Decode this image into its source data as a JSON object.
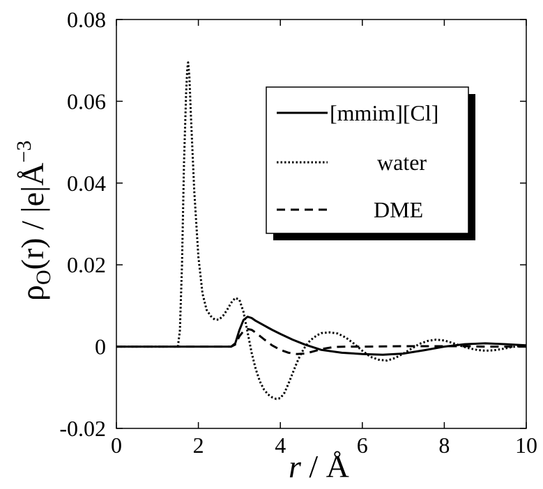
{
  "chart_data": {
    "type": "line",
    "xlabel_var": "r",
    "xlabel_unit": " / Å",
    "ylabel_rho": "ρ",
    "ylabel_sub": "O",
    "ylabel_mid": "(r) / |e|Å",
    "ylabel_sup": "−3",
    "xlim": [
      0,
      10
    ],
    "ylim": [
      -0.02,
      0.08
    ],
    "xticks": [
      0,
      2,
      4,
      6,
      8,
      10
    ],
    "xtick_labels": [
      "0",
      "2",
      "4",
      "6",
      "8",
      "10"
    ],
    "yticks": [
      -0.02,
      0,
      0.02,
      0.04,
      0.06,
      0.08
    ],
    "ytick_labels": [
      "-0.02",
      "0",
      "0.02",
      "0.04",
      "0.06",
      "0.08"
    ],
    "grid": false,
    "legend_position": "top-right",
    "series": [
      {
        "name": "[mmim][Cl]",
        "style": "solid",
        "x": [
          0,
          2.8,
          2.9,
          3.0,
          3.1,
          3.2,
          3.3,
          3.4,
          3.6,
          3.8,
          4.0,
          4.3,
          4.6,
          5.0,
          5.5,
          6.0,
          6.5,
          7.0,
          7.5,
          8.0,
          8.5,
          9.0,
          9.5,
          10.0
        ],
        "y": [
          0,
          0,
          0.0008,
          0.004,
          0.0065,
          0.0073,
          0.007,
          0.0063,
          0.0052,
          0.0041,
          0.0031,
          0.0017,
          0.0005,
          -0.0008,
          -0.0015,
          -0.0018,
          -0.002,
          -0.0017,
          -0.0009,
          0.0,
          0.0006,
          0.0008,
          0.0006,
          0.0003
        ]
      },
      {
        "name": "water",
        "style": "dotted",
        "x": [
          0,
          1.5,
          1.55,
          1.6,
          1.65,
          1.7,
          1.73,
          1.75,
          1.78,
          1.82,
          1.9,
          2.0,
          2.1,
          2.2,
          2.3,
          2.4,
          2.5,
          2.6,
          2.7,
          2.8,
          2.9,
          3.0,
          3.1,
          3.2,
          3.3,
          3.4,
          3.5,
          3.6,
          3.7,
          3.8,
          3.9,
          4.0,
          4.1,
          4.2,
          4.3,
          4.4,
          4.5,
          4.6,
          4.7,
          4.8,
          4.9,
          5.0,
          5.2,
          5.4,
          5.6,
          5.8,
          6.0,
          6.2,
          6.4,
          6.6,
          6.8,
          7.0,
          7.2,
          7.4,
          7.6,
          7.8,
          8.0,
          8.2,
          8.4,
          8.6,
          8.8,
          9.0,
          9.2,
          9.4,
          9.6,
          9.8,
          10.0
        ],
        "y": [
          0,
          0,
          0.004,
          0.02,
          0.045,
          0.062,
          0.068,
          0.0695,
          0.066,
          0.056,
          0.038,
          0.022,
          0.013,
          0.009,
          0.0075,
          0.0066,
          0.0066,
          0.0075,
          0.009,
          0.0107,
          0.0119,
          0.0115,
          0.0085,
          0.0035,
          -0.0015,
          -0.0055,
          -0.0085,
          -0.0105,
          -0.0117,
          -0.0124,
          -0.0128,
          -0.0126,
          -0.0113,
          -0.009,
          -0.0065,
          -0.004,
          -0.0018,
          -0.0001,
          0.0012,
          0.0021,
          0.0028,
          0.0033,
          0.0035,
          0.0032,
          0.0022,
          0.0007,
          -0.001,
          -0.0025,
          -0.0032,
          -0.0034,
          -0.0028,
          -0.0017,
          -0.0005,
          0.0007,
          0.0014,
          0.0017,
          0.0015,
          0.0009,
          0.0002,
          -0.0004,
          -0.0008,
          -0.001,
          -0.0009,
          -0.0006,
          -0.0002,
          0.0001,
          0.0002
        ]
      },
      {
        "name": "DME",
        "style": "dashed",
        "x": [
          0,
          2.8,
          2.9,
          3.0,
          3.1,
          3.2,
          3.3,
          3.4,
          3.6,
          3.8,
          4.0,
          4.2,
          4.4,
          4.6,
          4.8,
          5.0,
          5.3,
          5.6,
          6.0,
          7.0,
          8.0,
          8.5,
          9.0,
          10.0
        ],
        "y": [
          0,
          0,
          0.0005,
          0.0025,
          0.0038,
          0.0043,
          0.0041,
          0.0034,
          0.0018,
          0.0003,
          -0.0008,
          -0.0015,
          -0.0018,
          -0.0017,
          -0.0012,
          -0.0006,
          -0.0001,
          0.0,
          0.0,
          0.0001,
          0.0001,
          0.0001,
          0.0,
          0.0
        ]
      }
    ]
  }
}
